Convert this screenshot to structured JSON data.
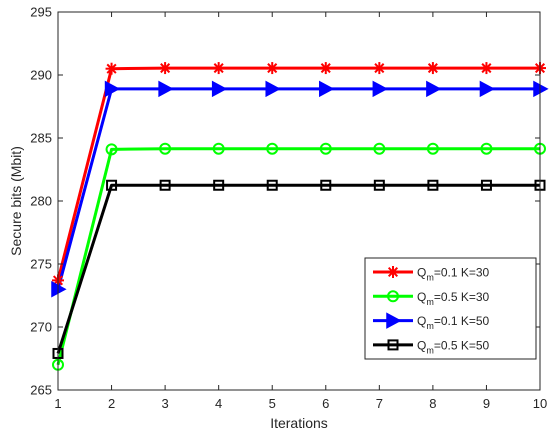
{
  "chart_data": {
    "type": "line",
    "title": "",
    "xlabel": "Iterations",
    "ylabel": "Secure bits (Mbit)",
    "x": [
      1,
      2,
      3,
      4,
      5,
      6,
      7,
      8,
      9,
      10
    ],
    "xlim": [
      1,
      10
    ],
    "ylim": [
      265,
      295
    ],
    "xticks": [
      1,
      2,
      3,
      4,
      5,
      6,
      7,
      8,
      9,
      10
    ],
    "yticks": [
      265,
      270,
      275,
      280,
      285,
      290,
      295
    ],
    "grid": false,
    "legend_position": "lower-right",
    "series": [
      {
        "name_base": "Q",
        "name_sub": "m",
        "name_rest": "=0.1 K=30",
        "color": "#ff0000",
        "marker": "asterisk",
        "values": [
          273.7,
          290.5,
          290.55,
          290.55,
          290.55,
          290.55,
          290.55,
          290.55,
          290.55,
          290.55
        ]
      },
      {
        "name_base": "Q",
        "name_sub": "m",
        "name_rest": "=0.5 K=30",
        "color": "#00ff00",
        "marker": "circle",
        "values": [
          267.0,
          284.1,
          284.15,
          284.15,
          284.15,
          284.15,
          284.15,
          284.15,
          284.15,
          284.15
        ]
      },
      {
        "name_base": "Q",
        "name_sub": "m",
        "name_rest": "=0.1 K=50",
        "color": "#0000ff",
        "marker": "triangle-right",
        "values": [
          273.0,
          288.9,
          288.9,
          288.9,
          288.9,
          288.9,
          288.9,
          288.9,
          288.9,
          288.9
        ]
      },
      {
        "name_base": "Q",
        "name_sub": "m",
        "name_rest": "=0.5 K=50",
        "color": "#000000",
        "marker": "square",
        "values": [
          267.9,
          281.25,
          281.25,
          281.25,
          281.25,
          281.25,
          281.25,
          281.25,
          281.25,
          281.25
        ]
      }
    ]
  }
}
